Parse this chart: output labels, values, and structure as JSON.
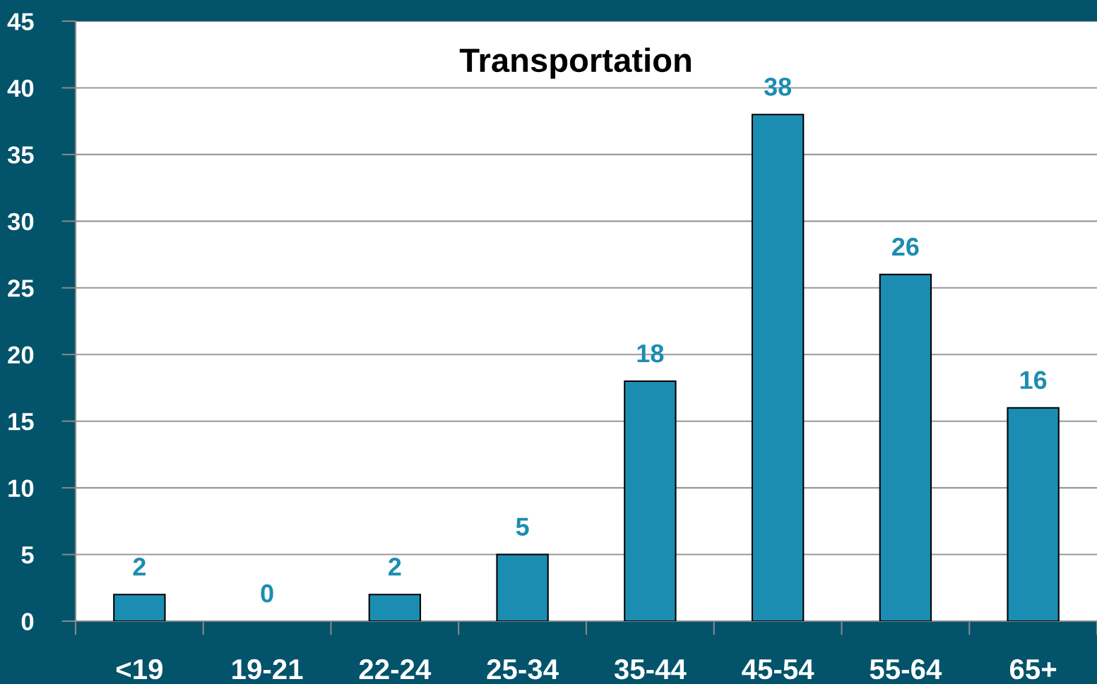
{
  "chart_data": {
    "type": "bar",
    "title": "Transportation",
    "categories": [
      "<19",
      "19-21",
      "22-24",
      "25-34",
      "35-44",
      "45-54",
      "55-64",
      "65+"
    ],
    "values": [
      2,
      0,
      2,
      5,
      18,
      38,
      26,
      16
    ],
    "color": "#1b8db3",
    "ylim": [
      0,
      45
    ],
    "yticks": [
      0,
      5,
      10,
      15,
      20,
      25,
      30,
      35,
      40,
      45
    ],
    "grid": "y",
    "data_labels": true
  }
}
